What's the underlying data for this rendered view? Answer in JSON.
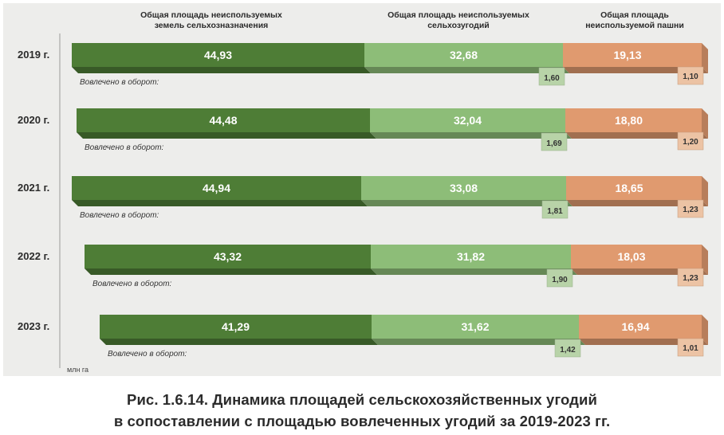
{
  "chart_data": {
    "type": "bar",
    "orientation": "horizontal",
    "stacked": true,
    "unit": "млн га",
    "categories": [
      "2019 г.",
      "2020 г.",
      "2021 г.",
      "2022 г.",
      "2023 г."
    ],
    "series": [
      {
        "name": "Общая площадь неиспользуемых земель сельхозназначения",
        "values": [
          "44,93",
          "44,48",
          "44,94",
          "43,32",
          "41,29"
        ],
        "color": "#4e7d36"
      },
      {
        "name": "Общая площадь неиспользуемых сельхозугодий",
        "values": [
          "32,68",
          "32,04",
          "33,08",
          "31,82",
          "31,62"
        ],
        "color": "#8dbd78"
      },
      {
        "name": "Общая площадь неиспользуемой пашни",
        "values": [
          "19,13",
          "18,80",
          "18,65",
          "18,03",
          "16,94"
        ],
        "color": "#e09a6f"
      }
    ],
    "involved_label": "Вовлечено в оборот:",
    "involved_agricultural": [
      "1,60",
      "1,69",
      "1,81",
      "1,90",
      "1,42"
    ],
    "involved_arable": [
      "1,10",
      "1,20",
      "1,23",
      "1,23",
      "1,01"
    ],
    "legend": {
      "series_1": [
        "Общая площадь неиспользуемых",
        "земель сельхозназначения"
      ],
      "series_2": [
        "Общая площадь неиспользуемых",
        "сельхозугодий"
      ],
      "series_3": [
        "Общая площадь",
        "неиспользуемой пашни"
      ],
      "placement": "top"
    },
    "grid": false
  },
  "caption": {
    "line1": "Рис. 1.6.14. Динамика площадей сельскохозяйственных угодий",
    "line2": "в сопоставлении с площадью вовлеченных угодий за 2019-2023 гг."
  },
  "colors": {
    "background": "#ededeb",
    "dark_green": "#4e7d36",
    "light_green": "#8dbd78",
    "orange": "#e09a6f",
    "label_light_green": "#b8d3a8",
    "label_orange": "#ecc3a4"
  }
}
